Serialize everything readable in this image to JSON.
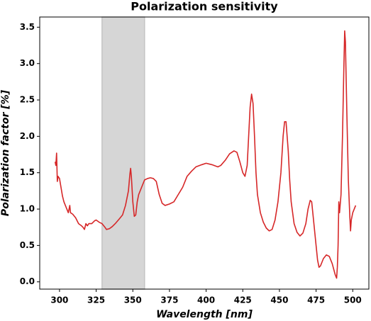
{
  "chart_data": {
    "type": "line",
    "title": "Polarization sensitivity",
    "xlabel": "Wavelength [nm]",
    "ylabel": "Polarization factor [%]",
    "color": "#d62728",
    "span": {
      "xmin": 329,
      "xmax": 358,
      "color": "#d6d6d6"
    },
    "xlim": [
      286.5,
      511
    ],
    "ylim": [
      -0.1,
      3.64
    ],
    "xticks": [
      300,
      325,
      350,
      375,
      400,
      425,
      450,
      475,
      500
    ],
    "yticks": [
      {
        "value": 0,
        "label": "0.0"
      },
      0.5,
      {
        "value": 1,
        "label": "1.0"
      },
      1.5,
      {
        "value": 2,
        "label": "2.0"
      },
      2.5,
      {
        "value": 3,
        "label": "3.0"
      },
      3.5
    ],
    "x": [
      297,
      297.5,
      298,
      298.5,
      299,
      300,
      301,
      302,
      303,
      305,
      306,
      307,
      307.5,
      309,
      311,
      313,
      315,
      316,
      317,
      318,
      319,
      320,
      322,
      324,
      325,
      327,
      329,
      331,
      332,
      334,
      336,
      338,
      341,
      343,
      345,
      347,
      348,
      348.5,
      349,
      350,
      351,
      352,
      353,
      354,
      356,
      358,
      360,
      362,
      364,
      366,
      368,
      370,
      372,
      375,
      378,
      381,
      384,
      387,
      390,
      393,
      397,
      400,
      404,
      408,
      410,
      413,
      416,
      419,
      421,
      423,
      425,
      426.5,
      428,
      429,
      430,
      431,
      432,
      433,
      434,
      435,
      437,
      439,
      441,
      443,
      445,
      447,
      449,
      451,
      452.5,
      453.5,
      454.5,
      456,
      457,
      458,
      460,
      462,
      464,
      466,
      468,
      469.5,
      471,
      472,
      473,
      475,
      476,
      477,
      478,
      480,
      482,
      484,
      486,
      488,
      489,
      489.5,
      490,
      490.5,
      491,
      492,
      493,
      494,
      494.5,
      495,
      496,
      497,
      498,
      498.5,
      499,
      500,
      501,
      502
    ],
    "values": [
      1.65,
      1.6,
      1.77,
      1.38,
      1.45,
      1.42,
      1.3,
      1.18,
      1.1,
      1.0,
      0.95,
      1.05,
      0.95,
      0.93,
      0.88,
      0.8,
      0.77,
      0.75,
      0.72,
      0.8,
      0.77,
      0.8,
      0.8,
      0.84,
      0.85,
      0.82,
      0.8,
      0.75,
      0.72,
      0.73,
      0.76,
      0.8,
      0.87,
      0.92,
      1.05,
      1.25,
      1.48,
      1.56,
      1.45,
      1.1,
      0.9,
      0.92,
      1.1,
      1.2,
      1.3,
      1.4,
      1.42,
      1.43,
      1.42,
      1.38,
      1.2,
      1.08,
      1.05,
      1.07,
      1.1,
      1.2,
      1.3,
      1.45,
      1.52,
      1.58,
      1.61,
      1.63,
      1.61,
      1.58,
      1.6,
      1.67,
      1.76,
      1.8,
      1.78,
      1.65,
      1.5,
      1.45,
      1.6,
      2.0,
      2.4,
      2.58,
      2.45,
      2.0,
      1.5,
      1.2,
      0.95,
      0.82,
      0.74,
      0.7,
      0.72,
      0.85,
      1.1,
      1.5,
      2.0,
      2.2,
      2.2,
      1.8,
      1.4,
      1.1,
      0.8,
      0.68,
      0.63,
      0.67,
      0.8,
      1.0,
      1.12,
      1.1,
      0.9,
      0.5,
      0.3,
      0.2,
      0.22,
      0.32,
      0.37,
      0.35,
      0.25,
      0.1,
      0.05,
      0.2,
      0.5,
      1.1,
      0.95,
      1.2,
      2.0,
      3.0,
      3.45,
      3.3,
      2.3,
      1.4,
      0.9,
      0.7,
      0.85,
      0.95,
      1.0,
      1.05
    ]
  }
}
